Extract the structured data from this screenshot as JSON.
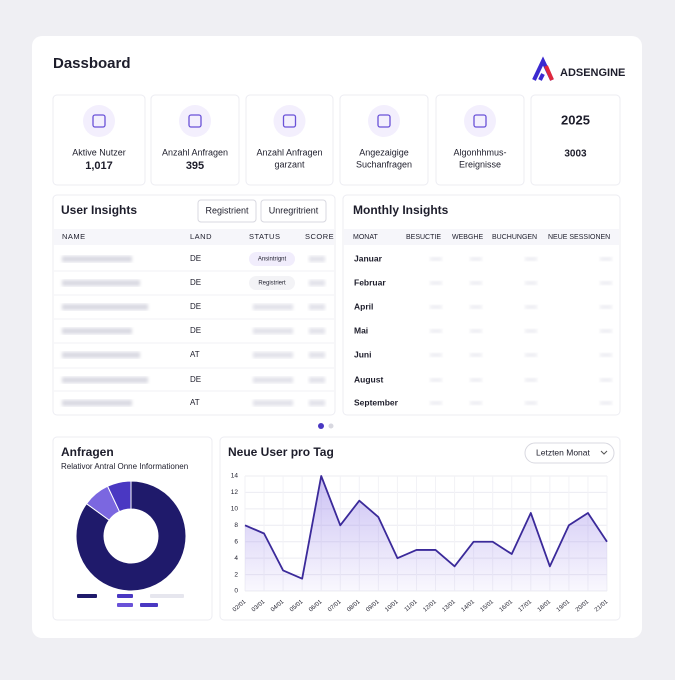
{
  "header": {
    "title": "Dassboard",
    "logo": "ADSENGINE"
  },
  "kpis": [
    {
      "label": [
        "Aktive Nutzer"
      ],
      "value": "1,017"
    },
    {
      "label": [
        "Anzahl Anfragen"
      ],
      "value": "395"
    },
    {
      "label": [
        "Anzahl Anfragen",
        "garzant"
      ]
    },
    {
      "label": [
        "Angezaigige",
        "Suchanfragen"
      ]
    },
    {
      "label": [
        "Algonhhmus-",
        "Ereignisse"
      ]
    },
    {
      "label": [
        "2025"
      ],
      "value": "3003"
    }
  ],
  "user_insights": {
    "title": "User Insights",
    "buttons": [
      "Registrient",
      "Unregritrient"
    ],
    "columns": [
      "NAME",
      "LAND",
      "STATUS",
      "SCORE"
    ],
    "rows": [
      {
        "land": "DE",
        "status": "Ansintrignt"
      },
      {
        "land": "DE",
        "status": "Registriert"
      },
      {
        "land": "DE"
      },
      {
        "land": "DE"
      },
      {
        "land": "AT"
      },
      {
        "land": "DE"
      },
      {
        "land": "AT"
      }
    ]
  },
  "monthly_insights": {
    "title": "Monthly Insights",
    "columns": [
      "MONAT",
      "BESUCTIE",
      "WEBGHE",
      "BUCHUNGEN",
      "NEUE SESSIONEN"
    ],
    "rows": [
      "Januar",
      "Februar",
      "April",
      "Mai",
      "Juni",
      "August",
      "September"
    ]
  },
  "chart_data": [
    {
      "type": "donut",
      "title": "Anfragen",
      "subtitle": "Relativor Antral Onne Informationen",
      "values": [
        85,
        8,
        7
      ],
      "colors": [
        "#1f1a6b",
        "#7b67e0",
        "#4a38c2"
      ]
    },
    {
      "type": "line",
      "title": "Neue User pro Tag",
      "control": "Letzten Monat",
      "categories": [
        "02/01",
        "03/01",
        "04/01",
        "05/01",
        "06/01",
        "07/01",
        "08/01",
        "09/01",
        "10/01",
        "11/01",
        "12/01",
        "13/01",
        "14/01",
        "15/01",
        "16/01",
        "17/01",
        "18/01",
        "19/01",
        "20/01",
        "21/01"
      ],
      "values": [
        8,
        7,
        2.5,
        1.5,
        14,
        8,
        11,
        9,
        4,
        5,
        5,
        3,
        6,
        6,
        4.5,
        9.5,
        3,
        8,
        9.5,
        6
      ],
      "ylim": [
        0,
        14
      ],
      "yticks": [
        0,
        2,
        4,
        6,
        8,
        10,
        12,
        14
      ],
      "color": "#3b2a9a",
      "grid": true
    }
  ]
}
